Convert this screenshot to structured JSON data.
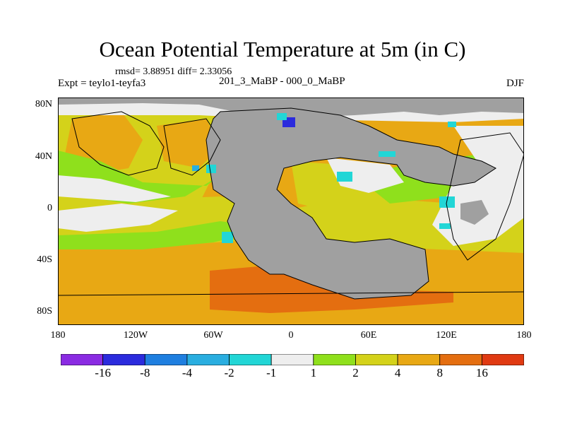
{
  "title": "Ocean Potential Temperature at 5m (in C)",
  "stats": "rmsd= 3.88951 diff= 2.33056",
  "expt": "Expt = teylo1-teyfa3",
  "case_id": "201_3_MaBP - 000_0_MaBP",
  "season": "DJF",
  "lat_labels": [
    "80N",
    "40N",
    "0",
    "40S",
    "80S"
  ],
  "lon_labels": [
    "180",
    "120W",
    "60W",
    "0",
    "60E",
    "120E",
    "180"
  ],
  "colorbar": {
    "tick_labels": [
      "-16",
      "-8",
      "-4",
      "-2",
      "-1",
      "1",
      "2",
      "4",
      "8",
      "16"
    ],
    "colors": [
      "#8a2be2",
      "#2b2bdd",
      "#1f7fe0",
      "#2aaee0",
      "#22d6d6",
      "#eeeeee",
      "#8fe01c",
      "#d4d21a",
      "#e8a814",
      "#e46e10",
      "#e03a12"
    ]
  },
  "map_colors": {
    "land": "#a0a0a0",
    "near_zero": "#eeeeee",
    "warm_1_2": "#8fe01c",
    "warm_2_4": "#d4d21a",
    "warm_4_8": "#e8a814",
    "warm_8_16": "#e46e10",
    "cool_1_2": "#22d6d6",
    "cool_2_4": "#2aaee0",
    "cool_8_16": "#2b2bdd"
  }
}
